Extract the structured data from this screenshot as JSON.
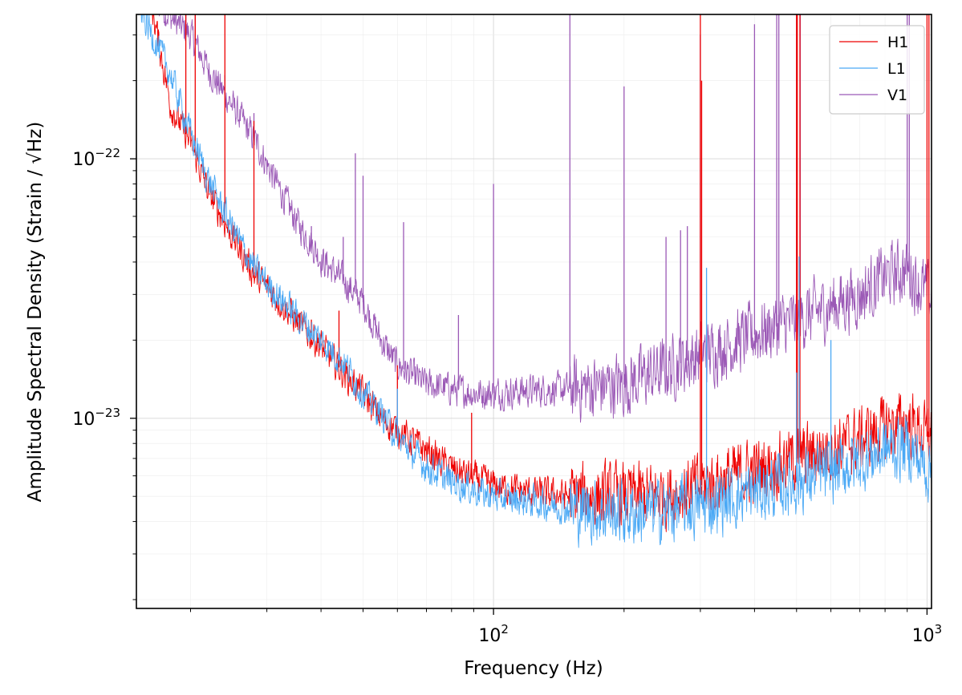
{
  "chart_data": {
    "type": "line",
    "xlabel": "Frequency (Hz)",
    "ylabel": "Amplitude Spectral Density (Strain / √Hz)",
    "xscale": "log",
    "yscale": "log",
    "xlim": [
      15,
      1024
    ],
    "ylim": [
      1.85e-24,
      3.6e-22
    ],
    "x_ticks": [
      {
        "value": 100,
        "base": "10",
        "exp": "2"
      },
      {
        "value": 1000,
        "base": "10",
        "exp": "3"
      }
    ],
    "y_ticks": [
      {
        "value": 1e-23,
        "base": "10",
        "exp": "−23"
      },
      {
        "value": 1e-22,
        "base": "10",
        "exp": "−22"
      }
    ],
    "grid": true,
    "legend_position": "upper right",
    "series": [
      {
        "name": "H1",
        "color": "#ee0000",
        "baseline": [
          [
            15,
            8e-22
          ],
          [
            18,
            1.6e-22
          ],
          [
            20,
            1.15e-22
          ],
          [
            22,
            7.5e-23
          ],
          [
            25,
            5e-23
          ],
          [
            28,
            3.6e-23
          ],
          [
            30,
            3.2e-23
          ],
          [
            35,
            2.4e-23
          ],
          [
            40,
            1.9e-23
          ],
          [
            45,
            1.5e-23
          ],
          [
            50,
            1.25e-23
          ],
          [
            55,
            1e-23
          ],
          [
            60,
            9e-24
          ],
          [
            70,
            7.5e-24
          ],
          [
            80,
            6.4e-24
          ],
          [
            90,
            5.9e-24
          ],
          [
            100,
            5.5e-24
          ],
          [
            120,
            5.2e-24
          ],
          [
            150,
            5e-24
          ],
          [
            200,
            5e-24
          ],
          [
            250,
            5.1e-24
          ],
          [
            300,
            5.5e-24
          ],
          [
            400,
            6.3e-24
          ],
          [
            500,
            7e-24
          ],
          [
            600,
            7.6e-24
          ],
          [
            700,
            8.3e-24
          ],
          [
            800,
            9.2e-24
          ],
          [
            900,
            9.6e-24
          ],
          [
            1000,
            8.5e-24
          ],
          [
            1024,
            8.4e-24
          ]
        ],
        "peaks": [
          [
            19.5,
            4e-22
          ],
          [
            20.5,
            4e-22
          ],
          [
            24,
            4e-22
          ],
          [
            28,
            1.4e-22
          ],
          [
            38,
            2.4e-23
          ],
          [
            44,
            2.6e-23
          ],
          [
            60,
            1.6e-23
          ],
          [
            89,
            1.05e-23
          ],
          [
            300,
            4e-22
          ],
          [
            302,
            2e-22
          ],
          [
            500,
            4e-22
          ],
          [
            502,
            4e-22
          ],
          [
            509,
            4e-22
          ],
          [
            1000,
            4e-22
          ],
          [
            1010,
            4e-22
          ]
        ]
      },
      {
        "name": "L1",
        "color": "#4ba9f5",
        "baseline": [
          [
            15,
            4e-22
          ],
          [
            17,
            2.6e-22
          ],
          [
            18,
            2.1e-22
          ],
          [
            20,
            1.25e-22
          ],
          [
            22,
            8.3e-23
          ],
          [
            25,
            5.4e-23
          ],
          [
            28,
            3.8e-23
          ],
          [
            30,
            3.3e-23
          ],
          [
            35,
            2.5e-23
          ],
          [
            40,
            2e-23
          ],
          [
            45,
            1.65e-23
          ],
          [
            50,
            1.25e-23
          ],
          [
            55,
            1.05e-23
          ],
          [
            60,
            8.5e-24
          ],
          [
            70,
            6.5e-24
          ],
          [
            80,
            5.7e-24
          ],
          [
            90,
            5.3e-24
          ],
          [
            100,
            5e-24
          ],
          [
            120,
            4.8e-24
          ],
          [
            150,
            4.5e-24
          ],
          [
            200,
            4.3e-24
          ],
          [
            250,
            4.4e-24
          ],
          [
            300,
            4.6e-24
          ],
          [
            400,
            5.2e-24
          ],
          [
            500,
            5.7e-24
          ],
          [
            600,
            6.2e-24
          ],
          [
            700,
            6.9e-24
          ],
          [
            800,
            7.6e-24
          ],
          [
            900,
            7.8e-24
          ],
          [
            1000,
            6.4e-24
          ],
          [
            1024,
            6.3e-24
          ]
        ],
        "peaks": [
          [
            60,
            1.3e-23
          ],
          [
            310,
            3.8e-23
          ],
          [
            500,
            1.5e-23
          ],
          [
            507,
            4.2e-23
          ],
          [
            600,
            2e-23
          ]
        ]
      },
      {
        "name": "V1",
        "color": "#9b59b6",
        "baseline": [
          [
            15,
            5e-22
          ],
          [
            18,
            3.5e-22
          ],
          [
            20,
            3e-22
          ],
          [
            22,
            2.2e-22
          ],
          [
            25,
            1.6e-22
          ],
          [
            28,
            1.2e-22
          ],
          [
            30,
            9.5e-23
          ],
          [
            35,
            5.8e-23
          ],
          [
            40,
            4.1e-23
          ],
          [
            45,
            3.4e-23
          ],
          [
            50,
            2.8e-23
          ],
          [
            55,
            2e-23
          ],
          [
            60,
            1.6e-23
          ],
          [
            70,
            1.35e-23
          ],
          [
            80,
            1.3e-23
          ],
          [
            90,
            1.25e-23
          ],
          [
            100,
            1.25e-23
          ],
          [
            120,
            1.28e-23
          ],
          [
            150,
            1.3e-23
          ],
          [
            200,
            1.35e-23
          ],
          [
            250,
            1.55e-23
          ],
          [
            300,
            1.75e-23
          ],
          [
            400,
            2.1e-23
          ],
          [
            500,
            2.4e-23
          ],
          [
            600,
            2.7e-23
          ],
          [
            700,
            3e-23
          ],
          [
            800,
            3.5e-23
          ],
          [
            900,
            3.75e-23
          ],
          [
            1000,
            3e-23
          ],
          [
            1024,
            2.9e-23
          ]
        ],
        "peaks": [
          [
            19.5,
            4e-22
          ],
          [
            20.5,
            4e-22
          ],
          [
            24,
            2.1e-22
          ],
          [
            28,
            1.5e-22
          ],
          [
            38,
            5.5e-23
          ],
          [
            45,
            5e-23
          ],
          [
            48,
            1.05e-22
          ],
          [
            50,
            8.6e-23
          ],
          [
            62,
            5.7e-23
          ],
          [
            83,
            2.5e-23
          ],
          [
            100,
            8e-23
          ],
          [
            150,
            4e-22
          ],
          [
            200,
            1.9e-22
          ],
          [
            250,
            5e-23
          ],
          [
            270,
            5.3e-23
          ],
          [
            280,
            5.5e-23
          ],
          [
            300,
            3e-22
          ],
          [
            400,
            3.3e-22
          ],
          [
            450,
            4e-22
          ],
          [
            455,
            4e-22
          ],
          [
            500,
            4e-22
          ],
          [
            510,
            4e-22
          ],
          [
            900,
            4e-22
          ],
          [
            910,
            4e-22
          ]
        ]
      }
    ]
  }
}
